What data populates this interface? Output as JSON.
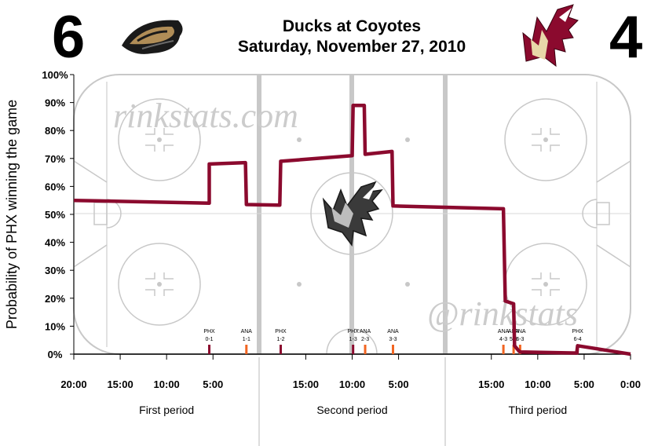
{
  "header": {
    "away_score": "6",
    "home_score": "4",
    "title": "Ducks at Coyotes",
    "subtitle": "Saturday, November 27, 2010",
    "away_logo_icon": "ducks-logo-icon",
    "home_logo_icon": "coyotes-logo-icon",
    "center_logo_icon": "coyote-head-icon"
  },
  "watermarks": [
    "rinkstats.com",
    "@rinkstats"
  ],
  "colors": {
    "line": "#8b0a2e",
    "home_goal": "#8b0a2e",
    "away_goal": "#f26522",
    "rink": "#c8c8c8"
  },
  "chart_data": {
    "type": "line",
    "ylabel": "Probability of PHX winning the game",
    "ylim": [
      0,
      100
    ],
    "y_ticks": [
      0,
      10,
      20,
      30,
      40,
      50,
      60,
      70,
      80,
      90,
      100
    ],
    "y_tick_labels": [
      "0%",
      "10%",
      "20%",
      "30%",
      "40%",
      "50%",
      "60%",
      "70%",
      "80%",
      "90%",
      "100%"
    ],
    "xlim": [
      0,
      60
    ],
    "x_ticks": [
      0,
      5,
      10,
      15,
      25,
      30,
      35,
      45,
      50,
      55,
      60
    ],
    "x_tick_labels": [
      "20:00",
      "15:00",
      "10:00",
      "5:00",
      "15:00",
      "10:00",
      "5:00",
      "15:00",
      "10:00",
      "5:00",
      "0:00"
    ],
    "periods": [
      "First period",
      "Second period",
      "Third period"
    ],
    "series": [
      {
        "x": [
          0,
          14.6,
          14.6,
          18.5,
          18.6,
          22.2,
          22.3,
          30,
          30.1,
          31.3,
          31.4,
          34.3,
          34.4,
          46.3,
          46.5,
          47.4,
          47.5,
          48.0,
          48.1,
          54.2,
          54.3,
          60
        ],
        "y": [
          55,
          54,
          68,
          68.5,
          53.5,
          53.3,
          69,
          71,
          89,
          89,
          71.5,
          72.5,
          53,
          52,
          19,
          18,
          3,
          1,
          0.8,
          0.4,
          3,
          0
        ]
      }
    ],
    "goals": [
      {
        "x": 14.6,
        "team": "PHX",
        "label": "PHX",
        "score": "0-1"
      },
      {
        "x": 18.6,
        "team": "ANA",
        "label": "ANA",
        "score": "1-1"
      },
      {
        "x": 22.3,
        "team": "PHX",
        "label": "PHX",
        "score": "1-2"
      },
      {
        "x": 30.1,
        "team": "PHX",
        "label": "PHX",
        "score": "1-3"
      },
      {
        "x": 31.4,
        "team": "ANA",
        "label": "ANA",
        "score": "2-3"
      },
      {
        "x": 34.4,
        "team": "ANA",
        "label": "ANA",
        "score": "3-3"
      },
      {
        "x": 46.3,
        "team": "ANA",
        "label": "ANA",
        "score": "4-3"
      },
      {
        "x": 47.4,
        "team": "ANA",
        "label": "ANA",
        "score": "5-3"
      },
      {
        "x": 48.1,
        "team": "ANA",
        "label": "ANA",
        "score": "6-3"
      },
      {
        "x": 54.3,
        "team": "PHX",
        "label": "PHX",
        "score": "6-4"
      }
    ]
  }
}
